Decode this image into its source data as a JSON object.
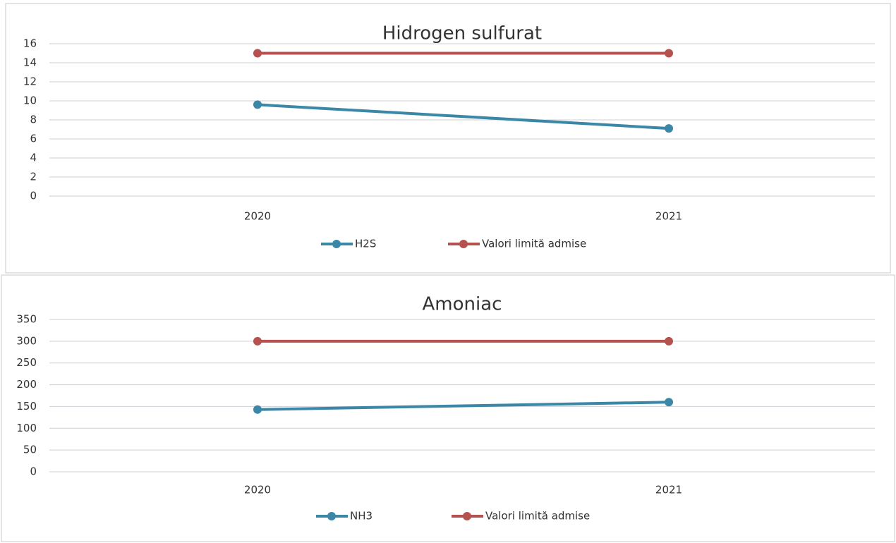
{
  "chart_data": [
    {
      "type": "line",
      "title": "Hidrogen sulfurat",
      "categories": [
        "2020",
        "2021"
      ],
      "series": [
        {
          "name": "H2S",
          "color": "#3a87a8",
          "values": [
            9.6,
            7.1
          ]
        },
        {
          "name": "Valori limită admise",
          "color": "#b5524f",
          "values": [
            15,
            15
          ]
        }
      ],
      "ylim": [
        0,
        16
      ],
      "yticks": [
        0,
        2,
        4,
        6,
        8,
        10,
        12,
        14,
        16
      ],
      "grid": true,
      "legend": "bottom"
    },
    {
      "type": "line",
      "title": "Amoniac",
      "categories": [
        "2020",
        "2021"
      ],
      "series": [
        {
          "name": "NH3",
          "color": "#3a87a8",
          "values": [
            143,
            160
          ]
        },
        {
          "name": "Valori limită admise",
          "color": "#b5524f",
          "values": [
            300,
            300
          ]
        }
      ],
      "ylim": [
        0,
        350
      ],
      "yticks": [
        0,
        50,
        100,
        150,
        200,
        250,
        300,
        350
      ],
      "grid": true,
      "legend": "bottom"
    }
  ]
}
